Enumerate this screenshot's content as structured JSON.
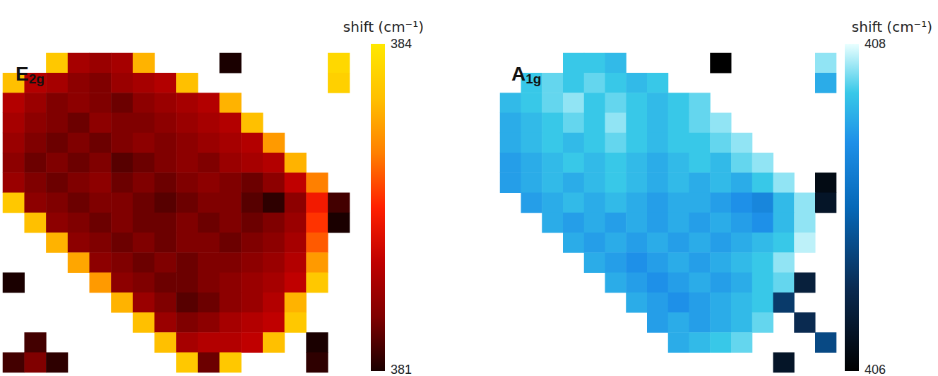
{
  "chart_data": [
    {
      "type": "heatmap",
      "label": "E2g",
      "colorbar_title": "shift (cm⁻¹)",
      "colorbar_range": [
        381,
        384
      ],
      "colorbar_ticks": [
        381,
        384
      ],
      "tick_labels": false,
      "cells": [
        [
          null,
          null,
          383.6,
          381.8,
          381.7,
          381.8,
          383.4,
          null,
          null,
          null,
          381.0,
          null,
          null,
          null,
          null,
          383.8
        ],
        [
          383.5,
          381.9,
          381.8,
          381.6,
          381.5,
          381.7,
          381.8,
          381.9,
          383.5,
          null,
          null,
          null,
          null,
          null,
          null,
          383.7
        ],
        [
          381.9,
          381.7,
          381.5,
          381.6,
          381.5,
          381.4,
          381.6,
          381.7,
          381.8,
          381.9,
          383.4,
          null,
          null,
          null,
          null,
          null
        ],
        [
          381.8,
          381.6,
          381.5,
          381.4,
          381.6,
          381.5,
          381.5,
          381.6,
          381.7,
          381.8,
          381.9,
          383.5,
          null,
          null,
          null,
          null
        ],
        [
          381.7,
          381.5,
          381.4,
          381.5,
          381.4,
          381.5,
          381.6,
          381.5,
          381.6,
          381.7,
          381.8,
          381.9,
          383.2,
          null,
          null,
          null
        ],
        [
          381.6,
          381.4,
          381.5,
          381.4,
          381.5,
          381.3,
          381.4,
          381.5,
          381.6,
          381.5,
          381.7,
          381.8,
          381.9,
          383.4,
          null,
          null
        ],
        [
          381.7,
          381.5,
          381.4,
          381.5,
          381.6,
          381.4,
          381.5,
          381.4,
          381.5,
          381.6,
          381.5,
          381.4,
          381.6,
          382.0,
          383.0,
          null
        ],
        [
          383.6,
          381.6,
          381.5,
          381.4,
          381.5,
          381.5,
          381.4,
          381.3,
          381.4,
          381.5,
          381.5,
          381.3,
          381.1,
          381.6,
          382.4,
          381.2
        ],
        [
          null,
          383.5,
          381.6,
          381.5,
          381.4,
          381.5,
          381.4,
          381.4,
          381.5,
          381.4,
          381.5,
          381.4,
          381.5,
          381.7,
          382.6,
          381.0
        ],
        [
          null,
          null,
          383.4,
          381.6,
          381.5,
          381.4,
          381.5,
          381.4,
          381.5,
          381.5,
          381.4,
          381.5,
          381.6,
          381.8,
          382.8,
          null
        ],
        [
          null,
          null,
          null,
          383.3,
          381.6,
          381.5,
          381.4,
          381.5,
          381.4,
          381.5,
          381.5,
          381.6,
          381.7,
          381.9,
          383.2,
          null
        ],
        [
          381.0,
          null,
          null,
          null,
          383.2,
          381.6,
          381.5,
          381.4,
          381.4,
          381.5,
          381.6,
          381.7,
          381.8,
          382.0,
          383.6,
          null
        ],
        [
          null,
          null,
          null,
          null,
          null,
          383.4,
          381.7,
          381.5,
          381.3,
          381.4,
          381.6,
          381.7,
          381.9,
          383.4,
          null,
          null
        ],
        [
          null,
          null,
          null,
          null,
          null,
          null,
          383.5,
          381.7,
          381.5,
          381.6,
          381.8,
          381.9,
          382.0,
          383.6,
          null,
          null
        ],
        [
          null,
          381.2,
          null,
          null,
          null,
          null,
          null,
          383.5,
          381.8,
          381.9,
          381.9,
          382.0,
          383.5,
          null,
          381.0,
          null
        ],
        [
          381.2,
          381.5,
          381.1,
          null,
          null,
          null,
          null,
          null,
          383.6,
          381.4,
          383.6,
          null,
          null,
          null,
          381.1,
          null
        ]
      ]
    },
    {
      "type": "heatmap",
      "label": "A1g",
      "colorbar_title": "shift (cm⁻¹)",
      "colorbar_range": [
        406,
        408
      ],
      "colorbar_ticks": [
        406,
        408
      ],
      "tick_labels": false,
      "cells": [
        [
          null,
          null,
          null,
          407.6,
          407.6,
          407.5,
          null,
          null,
          null,
          null,
          406.0,
          null,
          null,
          null,
          null,
          407.8
        ],
        [
          null,
          407.6,
          407.7,
          407.6,
          407.7,
          407.6,
          407.5,
          407.6,
          null,
          null,
          null,
          null,
          null,
          null,
          null,
          407.4
        ],
        [
          407.5,
          407.6,
          407.7,
          407.8,
          407.6,
          407.7,
          407.6,
          407.5,
          407.6,
          407.7,
          null,
          null,
          null,
          null,
          null,
          null
        ],
        [
          407.4,
          407.5,
          407.6,
          407.7,
          407.6,
          407.8,
          407.6,
          407.5,
          407.6,
          407.7,
          407.8,
          null,
          null,
          null,
          null,
          null
        ],
        [
          407.4,
          407.5,
          407.6,
          407.5,
          407.6,
          407.7,
          407.6,
          407.5,
          407.6,
          407.6,
          407.7,
          407.8,
          null,
          null,
          null,
          null
        ],
        [
          407.3,
          407.4,
          407.5,
          407.6,
          407.5,
          407.6,
          407.5,
          407.4,
          407.5,
          407.6,
          407.5,
          407.7,
          407.8,
          null,
          null,
          null
        ],
        [
          407.3,
          407.4,
          407.5,
          407.4,
          407.5,
          407.6,
          407.5,
          407.4,
          407.5,
          407.4,
          407.5,
          407.4,
          407.6,
          407.8,
          null,
          406.1
        ],
        [
          null,
          407.3,
          407.4,
          407.5,
          407.4,
          407.5,
          407.4,
          407.3,
          407.4,
          407.4,
          407.3,
          407.2,
          407.1,
          407.5,
          407.8,
          406.2
        ],
        [
          null,
          null,
          407.4,
          407.3,
          407.4,
          407.3,
          407.4,
          407.3,
          407.4,
          407.3,
          407.4,
          407.3,
          407.2,
          407.5,
          407.8,
          null
        ],
        [
          null,
          null,
          null,
          407.4,
          407.3,
          407.4,
          407.3,
          407.4,
          407.3,
          407.4,
          407.3,
          407.4,
          407.5,
          407.6,
          407.9,
          null
        ],
        [
          null,
          null,
          null,
          null,
          407.4,
          407.3,
          407.2,
          407.3,
          407.4,
          407.3,
          407.4,
          407.5,
          407.6,
          407.8,
          null,
          null
        ],
        [
          null,
          null,
          null,
          null,
          null,
          407.4,
          407.3,
          407.2,
          407.3,
          407.4,
          407.3,
          407.4,
          407.6,
          407.7,
          406.3,
          null
        ],
        [
          null,
          null,
          null,
          null,
          null,
          null,
          407.4,
          407.3,
          407.2,
          407.3,
          407.4,
          407.5,
          407.6,
          406.5,
          null,
          null
        ],
        [
          null,
          null,
          null,
          null,
          null,
          null,
          null,
          407.3,
          407.4,
          407.3,
          407.4,
          407.5,
          407.7,
          null,
          406.4,
          null
        ],
        [
          null,
          null,
          null,
          null,
          null,
          null,
          null,
          null,
          407.4,
          407.5,
          407.6,
          407.7,
          null,
          null,
          null,
          406.6
        ],
        [
          null,
          null,
          null,
          null,
          null,
          null,
          null,
          null,
          null,
          null,
          null,
          null,
          null,
          406.2,
          null,
          null
        ]
      ]
    }
  ]
}
